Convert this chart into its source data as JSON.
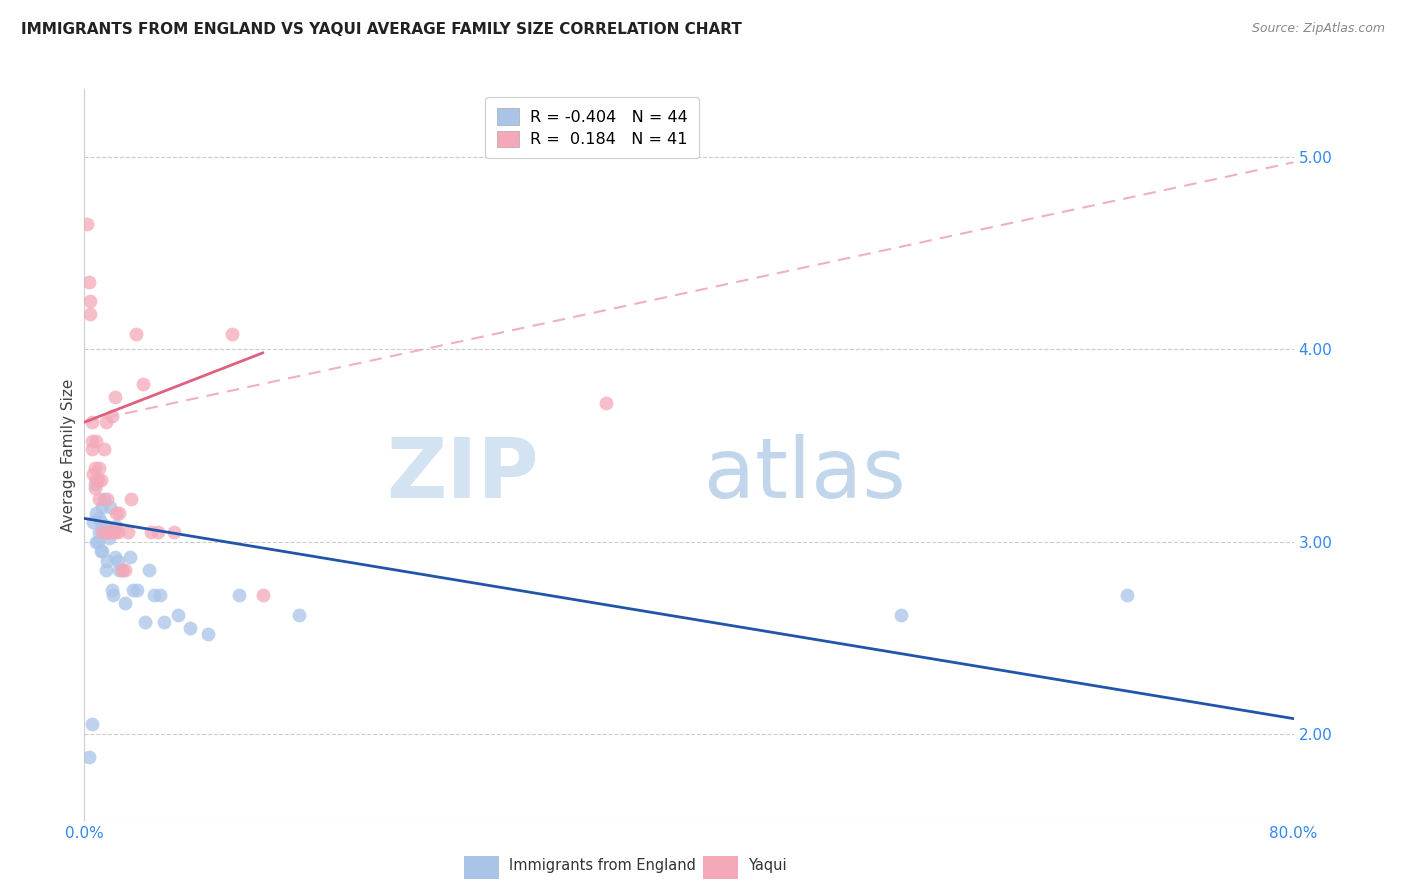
{
  "title": "IMMIGRANTS FROM ENGLAND VS YAQUI AVERAGE FAMILY SIZE CORRELATION CHART",
  "source": "Source: ZipAtlas.com",
  "ylabel": "Average Family Size",
  "yticks": [
    2.0,
    3.0,
    4.0,
    5.0
  ],
  "legend_blue_R": "-0.404",
  "legend_blue_N": "44",
  "legend_pink_R": "0.184",
  "legend_pink_N": "41",
  "legend_label_blue": "Immigrants from England",
  "legend_label_pink": "Yaqui",
  "blue_color": "#aac4e8",
  "pink_color": "#f4a8b8",
  "blue_line_color": "#2255aa",
  "pink_line_color": "#e06080",
  "pink_dash_color": "#f0b0c0",
  "xmin": 0.0,
  "xmax": 80.0,
  "ymin": 1.55,
  "ymax": 5.35,
  "blue_scatter_x": [
    0.3,
    0.5,
    0.6,
    0.7,
    0.8,
    0.8,
    0.9,
    1.0,
    1.0,
    1.1,
    1.1,
    1.2,
    1.2,
    1.3,
    1.3,
    1.4,
    1.4,
    1.5,
    1.5,
    1.6,
    1.7,
    1.8,
    1.9,
    2.0,
    2.1,
    2.2,
    2.3,
    2.5,
    2.7,
    3.0,
    3.2,
    3.5,
    4.0,
    4.3,
    4.6,
    5.0,
    5.3,
    6.2,
    7.0,
    8.2,
    10.2,
    14.2,
    54.0,
    69.0
  ],
  "blue_scatter_y": [
    1.88,
    2.05,
    3.1,
    3.3,
    3.15,
    3.0,
    3.0,
    3.12,
    3.05,
    3.1,
    2.95,
    2.95,
    3.18,
    3.22,
    3.05,
    2.85,
    3.08,
    2.9,
    3.05,
    3.02,
    3.18,
    2.75,
    2.72,
    2.92,
    3.08,
    2.9,
    2.85,
    2.85,
    2.68,
    2.92,
    2.75,
    2.75,
    2.58,
    2.85,
    2.72,
    2.72,
    2.58,
    2.62,
    2.55,
    2.52,
    2.72,
    2.62,
    2.62,
    2.72
  ],
  "pink_scatter_x": [
    0.2,
    0.3,
    0.4,
    0.4,
    0.5,
    0.5,
    0.5,
    0.6,
    0.7,
    0.7,
    0.8,
    0.8,
    0.9,
    1.0,
    1.0,
    1.1,
    1.2,
    1.3,
    1.4,
    1.5,
    1.5,
    1.6,
    1.8,
    1.9,
    2.0,
    2.0,
    2.1,
    2.2,
    2.3,
    2.5,
    2.7,
    2.9,
    3.1,
    3.4,
    3.9,
    4.4,
    4.9,
    5.9,
    9.8,
    11.8,
    34.5
  ],
  "pink_scatter_y": [
    4.65,
    4.35,
    4.25,
    4.18,
    3.52,
    3.62,
    3.48,
    3.35,
    3.28,
    3.38,
    3.32,
    3.52,
    3.32,
    3.22,
    3.38,
    3.32,
    3.05,
    3.48,
    3.62,
    3.05,
    3.22,
    3.05,
    3.65,
    3.05,
    3.05,
    3.75,
    3.15,
    3.05,
    3.15,
    2.85,
    2.85,
    3.05,
    3.22,
    4.08,
    3.82,
    3.05,
    3.05,
    3.05,
    4.08,
    2.72,
    3.72
  ],
  "blue_trend_x0": 0.0,
  "blue_trend_y0": 3.12,
  "blue_trend_x1": 80.0,
  "blue_trend_y1": 2.08,
  "pink_solid_x0": 0.0,
  "pink_solid_y0": 3.62,
  "pink_solid_x1": 11.8,
  "pink_solid_y1": 3.98,
  "pink_dash_x0": 0.0,
  "pink_dash_y0": 3.62,
  "pink_dash_x1": 80.0,
  "pink_dash_y1": 4.97
}
